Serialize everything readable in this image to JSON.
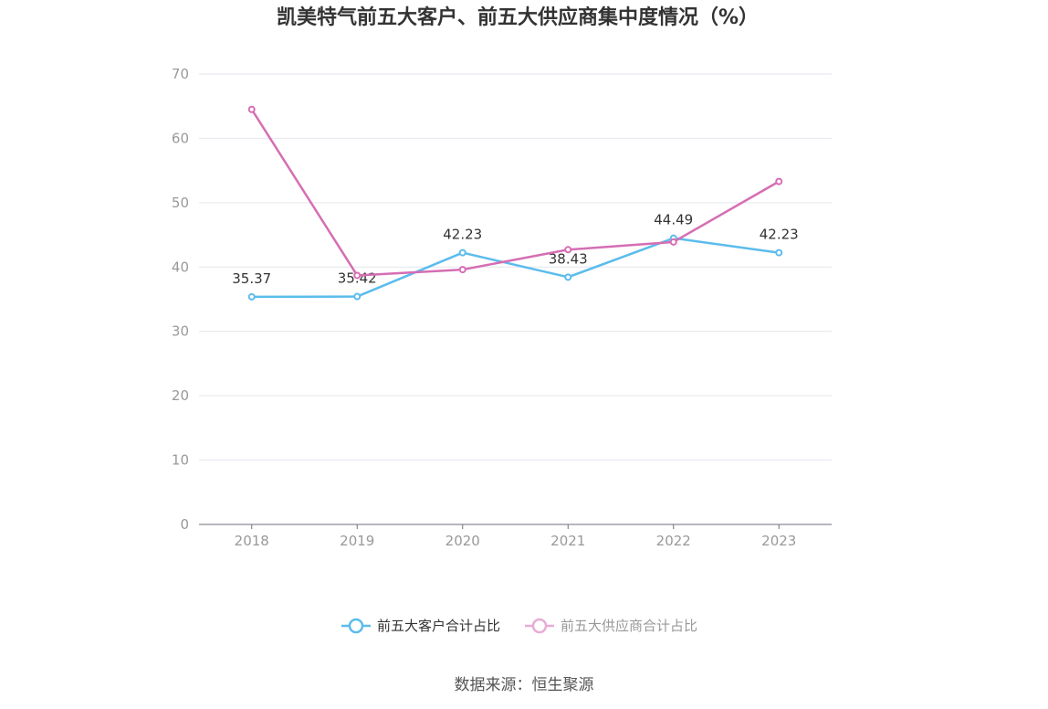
{
  "chart_data": {
    "type": "line",
    "title": "凯美特气前五大客户、前五大供应商集中度情况（%）",
    "xlabel": "",
    "ylabel": "",
    "categories": [
      "2018",
      "2019",
      "2020",
      "2021",
      "2022",
      "2023"
    ],
    "ylim": [
      0,
      70
    ],
    "yticks": [
      0,
      10,
      20,
      30,
      40,
      50,
      60,
      70
    ],
    "grid": true,
    "legend_position": "bottom",
    "series": [
      {
        "name": "前五大客户合计占比",
        "color": "#5bbcec",
        "values": [
          35.37,
          35.42,
          42.23,
          38.43,
          44.49,
          42.23
        ],
        "labels": [
          "35.37",
          "35.42",
          "42.23",
          "38.43",
          "44.49",
          "42.23"
        ]
      },
      {
        "name": "前五大供应商合计占比",
        "color": "#d56eb3",
        "legend_color": "#e8acd4",
        "values": [
          64.5,
          38.7,
          39.6,
          42.7,
          43.9,
          53.3
        ]
      }
    ],
    "source": "数据来源：恒生聚源"
  }
}
